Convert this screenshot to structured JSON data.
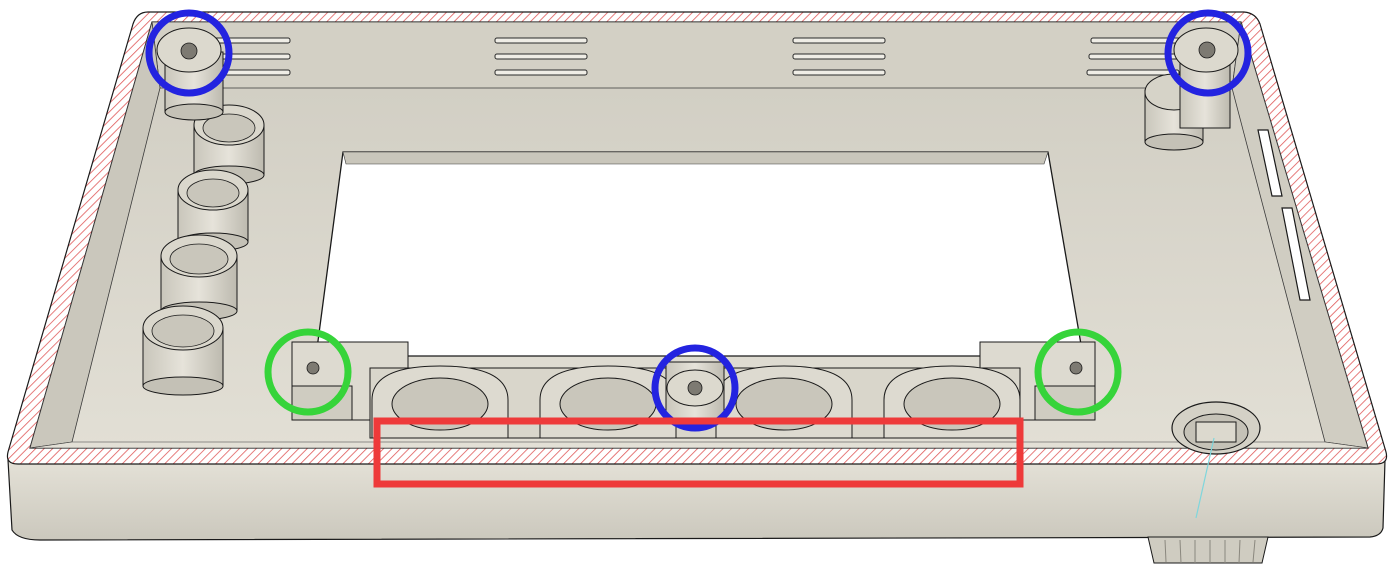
{
  "image": {
    "subject": "enclosure-cad-render",
    "colors": {
      "body": "#d8d5ca",
      "body_shadow": "#bfbcb1",
      "floor": "#dbd8cd",
      "edge": "#1a1a1a",
      "hatch": "#e05a5a",
      "highlight_blue": "#2323e0",
      "highlight_green": "#36d43a",
      "highlight_red": "#ee3a3a",
      "background": "#ffffff"
    },
    "annotations": {
      "blue_circle_count": 3,
      "green_circle_count": 2,
      "red_rectangle_count": 1
    }
  }
}
